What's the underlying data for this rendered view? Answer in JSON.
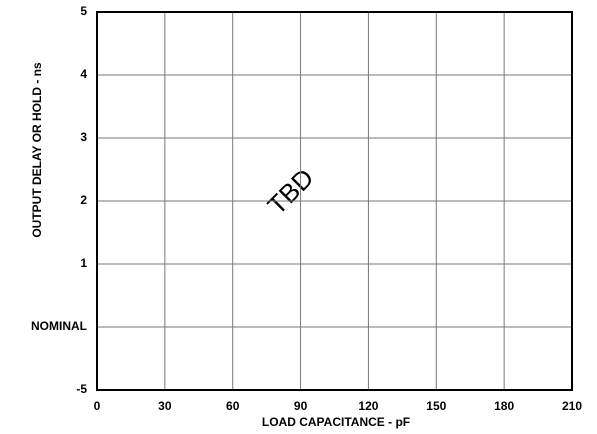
{
  "chart_data": {
    "type": "line",
    "x_label": "LOAD CAPACITANCE - pF",
    "y_label": "OUTPUT DELAY OR HOLD - ns",
    "annotation": "TBD",
    "xlim": [
      0,
      210
    ],
    "xticks": [
      0,
      30,
      60,
      90,
      120,
      150,
      180,
      210
    ],
    "y_categories": [
      "5",
      "4",
      "3",
      "2",
      "1",
      "NOMINAL",
      "-5"
    ],
    "grid": true
  }
}
